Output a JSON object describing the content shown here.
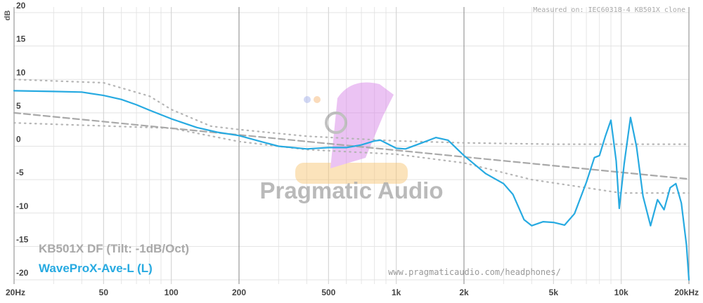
{
  "chart_data": {
    "type": "line",
    "y_label": "dB",
    "annotation": "Measured on: IEC60318-4 KB501X clone",
    "watermark": "Pragmatic Audio",
    "url": "www.pragmaticaudio.com/headphones/",
    "xscale": "log",
    "xlim": [
      20,
      20000
    ],
    "ylim": [
      -20,
      20
    ],
    "xticks": [
      {
        "value": 20,
        "label": "20Hz"
      },
      50,
      100,
      200,
      500,
      {
        "value": 1000,
        "label": "1k"
      },
      {
        "value": 2000,
        "label": "2k"
      },
      {
        "value": 5000,
        "label": "5k"
      },
      {
        "value": 10000,
        "label": "10k"
      },
      {
        "value": 20000,
        "label": "20kHz"
      }
    ],
    "yticks": [
      20,
      15,
      10,
      5,
      0,
      -5,
      -10,
      -15,
      -20
    ],
    "grid": true,
    "legend": "bottom-left",
    "series": [
      {
        "color": "#b5b5b5",
        "style": "dotted",
        "x": [
          20,
          50,
          80,
          100,
          150,
          200,
          400,
          1000,
          2000,
          5000,
          20000
        ],
        "values": [
          10,
          9.5,
          7.5,
          5.5,
          3,
          2.5,
          1.5,
          0.8,
          0.5,
          0.3,
          0.3
        ]
      },
      {
        "color": "#b5b5b5",
        "style": "dotted",
        "x": [
          20,
          100,
          200,
          400,
          1000,
          2000,
          4000,
          10000,
          20000
        ],
        "values": [
          3.5,
          2.7,
          0.7,
          -0.5,
          -1.2,
          -2.5,
          -5,
          -7,
          -7
        ]
      },
      {
        "name": "KB501X DF (Tilt: -1dB/Oct)",
        "color": "#a9a9a9",
        "style": "dashed",
        "x": [
          20,
          200,
          2000,
          20000
        ],
        "values": [
          5,
          1.7,
          -1.6,
          -4.9
        ]
      },
      {
        "name": "WaveProX-Ave-L (L)",
        "color": "#27aae1",
        "style": "solid",
        "x": [
          20,
          30,
          40,
          50,
          60,
          70,
          80,
          100,
          130,
          160,
          200,
          250,
          300,
          400,
          500,
          600,
          700,
          800,
          850,
          1000,
          1100,
          1300,
          1500,
          1700,
          2000,
          2500,
          3000,
          3300,
          3700,
          4000,
          4500,
          5000,
          5600,
          6200,
          7000,
          7600,
          8000,
          8500,
          9000,
          9500,
          9800,
          10300,
          11000,
          11700,
          12500,
          13500,
          14500,
          15500,
          16500,
          17500,
          18500,
          19500,
          20000
        ],
        "values": [
          8.3,
          8.2,
          8.1,
          7.6,
          7.0,
          6.2,
          5.4,
          4.1,
          2.8,
          2.1,
          1.6,
          0.7,
          0,
          -0.4,
          -0.2,
          -0.2,
          0.2,
          0.8,
          0.9,
          -0.3,
          -0.4,
          0.5,
          1.3,
          0.9,
          -1.4,
          -4.1,
          -5.6,
          -7.2,
          -11.0,
          -11.9,
          -11.3,
          -11.4,
          -11.8,
          -10.1,
          -5.4,
          -1.7,
          -1.4,
          1.5,
          3.9,
          -2.2,
          -9.3,
          -2.7,
          4.3,
          -0.1,
          -7.5,
          -11.9,
          -8.0,
          -9.5,
          -6.2,
          -5.6,
          -8.5,
          -14.8,
          -20
        ]
      }
    ]
  }
}
